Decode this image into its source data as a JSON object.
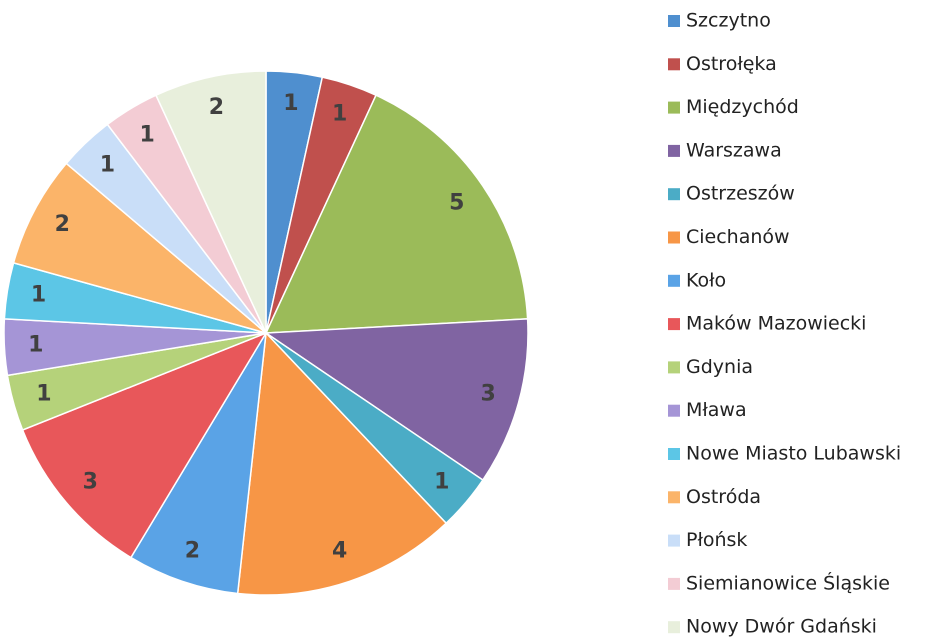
{
  "chart_data": {
    "type": "pie",
    "categories": [
      "Szczytno",
      "Ostrołęka",
      "Międzychód",
      "Warszawa",
      "Ostrzeszów",
      "Ciechanów",
      "Koło",
      "Maków Mazowiecki",
      "Gdynia",
      "Mława",
      "Nowe Miasto Lubawski",
      "Ostróda",
      "Płońsk",
      "Siemianowice Śląskie",
      "Nowy Dwór Gdański"
    ],
    "values": [
      1,
      1,
      5,
      3,
      1,
      4,
      2,
      3,
      1,
      1,
      1,
      2,
      1,
      1,
      2
    ],
    "colors": [
      "#4f8fcf",
      "#c0504d",
      "#9bbb59",
      "#8064a2",
      "#4bacc6",
      "#f79646",
      "#5aa3e6",
      "#e8575a",
      "#b5d27a",
      "#a595d6",
      "#5cc6e6",
      "#fbb469",
      "#c9def8",
      "#f3ccd4",
      "#e8efdc"
    ],
    "legend": "right"
  }
}
